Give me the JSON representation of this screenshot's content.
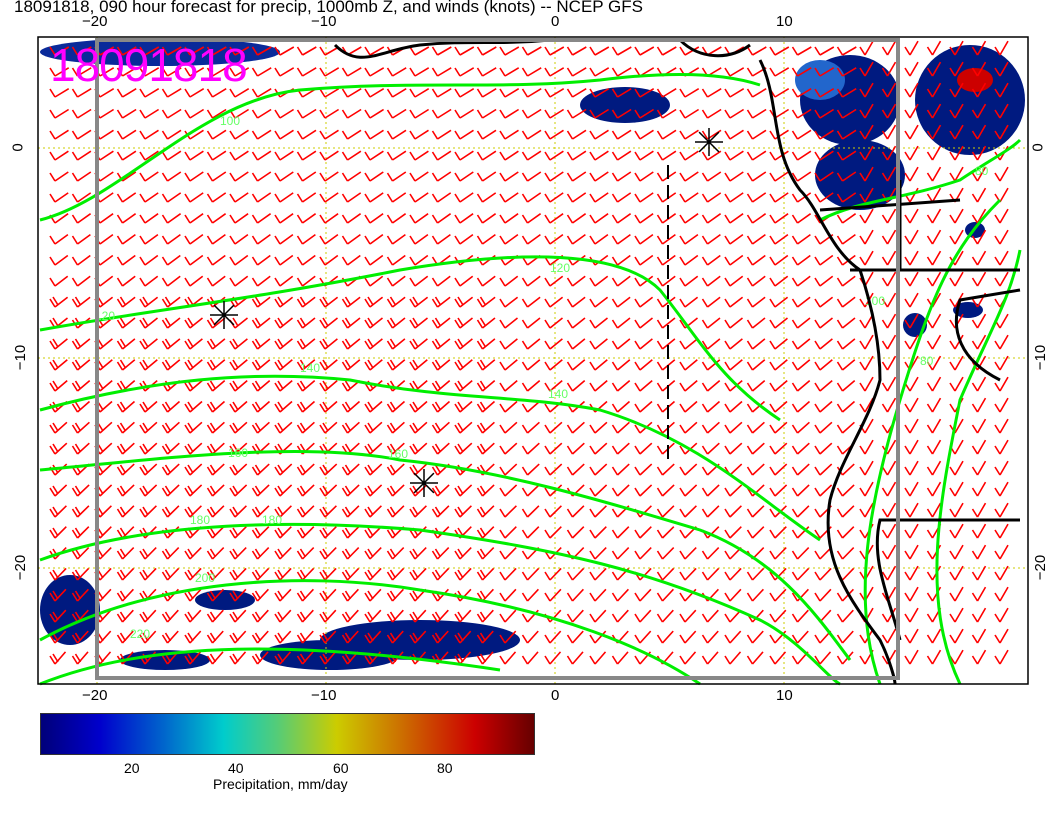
{
  "title": "18091818, 090 hour forecast for precip, 1000mb Z, and winds (knots) -- NCEP GFS",
  "date_stamp": "18091818",
  "axes": {
    "top_ticks": [
      "−20",
      "−10",
      "0",
      "10"
    ],
    "bottom_ticks": [
      "−20",
      "−10",
      "0",
      "10"
    ],
    "left_ticks": [
      "0",
      "−10",
      "−20"
    ],
    "right_ticks": [
      "0",
      "−10",
      "−20"
    ],
    "grid": "dotted yellow"
  },
  "contours": {
    "color": "#00ee00",
    "labels": [
      "100",
      "120",
      "140",
      "140",
      "160",
      "160",
      "180",
      "180",
      "200",
      "220",
      "120",
      "100",
      "80",
      "80"
    ]
  },
  "winds": {
    "color": "#ff0000",
    "prevailing": "southeasterly"
  },
  "markers": [
    "low-center",
    "high-center",
    "high-center"
  ],
  "colorbar": {
    "ticks": [
      "20",
      "40",
      "60",
      "80"
    ],
    "label": "Precipitation, mm/day",
    "colors": [
      "#00007a",
      "#0000cc",
      "#0066cc",
      "#00cccc",
      "#55cc77",
      "#cccc00",
      "#cc7700",
      "#cc0000",
      "#660000"
    ]
  }
}
